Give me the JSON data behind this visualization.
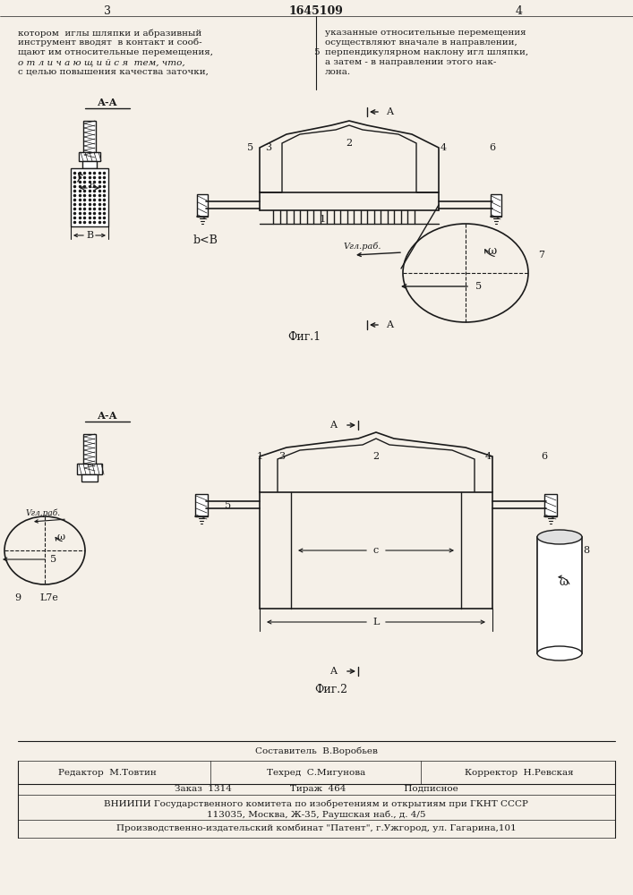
{
  "page_number_left": "3",
  "patent_number": "1645109",
  "page_number_right": "4",
  "text_left": "котором  иглы шляпки и абразивный\nинструмент вводят  в контакт и сооб-\nщают им относительные перемещения,\nо т л и ч а ю щ и й с я  тем, что,\nс целью повышения качества заточки,",
  "text_right": "указанные относительные перемещения\nосуществляют вначале в направлении,\nперпендикулярном наклону игл шляпки,\nа затем - в направлении этого нак-\nлона.",
  "text_number_5": "5",
  "fig1_label": "Фиг.1",
  "fig2_label": "Фиг.2",
  "bottom_line1": "Составитель  В.Воробьев",
  "bottom_editor": "Редактор  М.Товтин",
  "bottom_techred": "Техред  С.Мигунова",
  "bottom_corrector": "Корректор  Н.Ревская",
  "bottom_line2": "Заказ  1314                    Тираж  464                    Подписное",
  "bottom_line3": "ВНИИПИ Государственного комитета по изобретениям и открытиям при ГКНТ СССР",
  "bottom_line4": "113035, Москва, Ж-35, Раушская наб., д. 4/5",
  "bottom_line5": "Производственно-издательский комбинат \"Патент\", г.Ужгород, ул. Гагарина,101",
  "bg_color": "#f5f0e8",
  "line_color": "#1a1a1a",
  "text_color": "#1a1a1a"
}
